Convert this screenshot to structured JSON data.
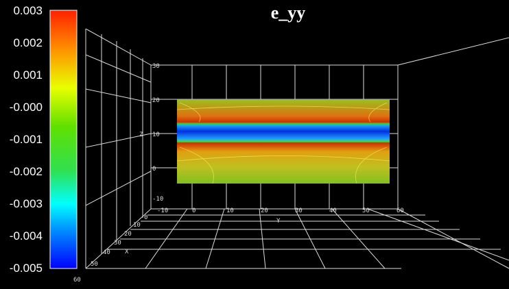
{
  "chart_data": {
    "type": "heatmap",
    "title": "e_yy",
    "colorbar": {
      "ticks": [
        "0.003",
        "0.002",
        "0.001",
        "-0.000",
        "-0.001",
        "-0.002",
        "-0.003",
        "-0.004",
        "-0.005"
      ],
      "range": [
        -0.005,
        0.003
      ],
      "colors": [
        "#ff2000",
        "#ff9000",
        "#e8ff00",
        "#40e000",
        "#30e060",
        "#00ffff",
        "#0090ff",
        "#0000ff"
      ],
      "extra_label": "60"
    },
    "axes": {
      "y": {
        "label": "Y",
        "ticks": [
          "-10",
          "0",
          "10",
          "20",
          "30",
          "40",
          "50",
          "60"
        ]
      },
      "z": {
        "label": "Z",
        "ticks": [
          "30",
          "20",
          "10",
          "0",
          "-10"
        ]
      },
      "x": {
        "label": "X",
        "ticks": [
          "0",
          "10",
          "20",
          "30",
          "40",
          "50"
        ]
      }
    },
    "field": "strain band: low (blue, ~-0.005) at Z≈10, high (red, ~0.002) adjacent above and below, green/yellow elsewhere",
    "grid": true
  }
}
